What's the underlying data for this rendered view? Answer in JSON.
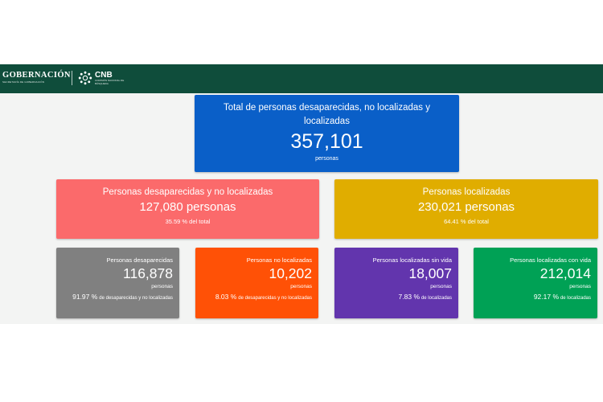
{
  "header": {
    "gob_title": "GOBERNACIÓN",
    "gob_subtitle": "SECRETARÍA DE GOBERNACIÓN",
    "cnb_title": "CNB",
    "cnb_subtitle": "COMISIÓN NACIONAL DE BÚSQUEDA",
    "bg_color": "#0f4d3b"
  },
  "total": {
    "title": "Total de personas desaparecidas, no localizadas y localizadas",
    "value": "357,101",
    "unit": "personas",
    "color": "#0a5fc8"
  },
  "missing_unlocated": {
    "title": "Personas desaparecidas y no localizadas",
    "value": "127,080 personas",
    "pct": "35.59 % del total",
    "color": "#fb6a6b"
  },
  "located": {
    "title": "Personas localizadas",
    "value": "230,021 personas",
    "pct": "64.41 % del total",
    "color": "#e0ad00"
  },
  "cards": [
    {
      "title": "Personas desaparecidas",
      "value": "116,878",
      "unit": "personas",
      "pct": "91.97 %",
      "pct_desc": "de desaparecidas y no localizadas",
      "color": "#808080"
    },
    {
      "title": "Personas no localizadas",
      "value": "10,202",
      "unit": "personas",
      "pct": "8.03 %",
      "pct_desc": "de desaparecidas y no localizadas",
      "color": "#ff5106"
    },
    {
      "title": "Personas localizadas sin vida",
      "value": "18,007",
      "unit": "personas",
      "pct": "7.83 %",
      "pct_desc": "de localizadas",
      "color": "#6235ad"
    },
    {
      "title": "Personas localizadas con vida",
      "value": "212,014",
      "unit": "personas",
      "pct": "92.17 %",
      "pct_desc": "de localizadas",
      "color": "#00a155"
    }
  ]
}
